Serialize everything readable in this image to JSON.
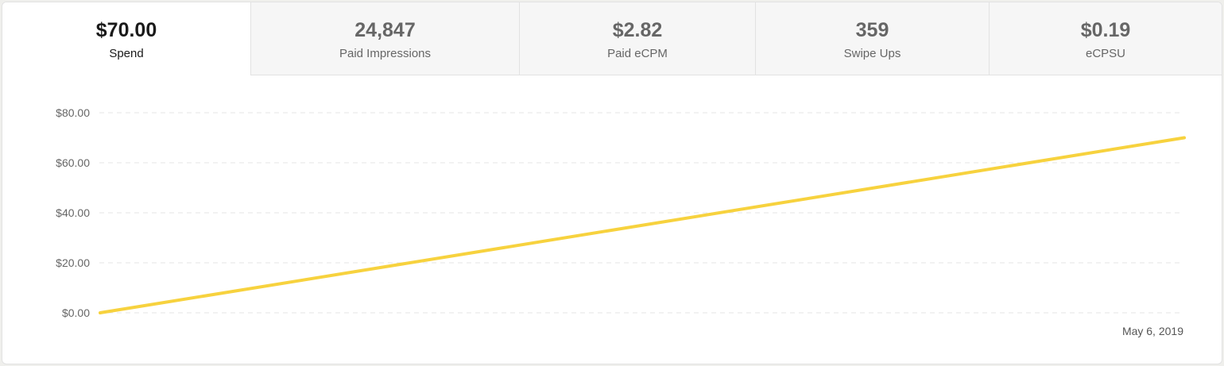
{
  "tabs": [
    {
      "value": "$70.00",
      "label": "Spend",
      "active": true
    },
    {
      "value": "24,847",
      "label": "Paid Impressions",
      "active": false
    },
    {
      "value": "$2.82",
      "label": "Paid eCPM",
      "active": false
    },
    {
      "value": "359",
      "label": "Swipe Ups",
      "active": false
    },
    {
      "value": "$0.19",
      "label": "eCPSU",
      "active": false
    }
  ],
  "chart_data": {
    "type": "line",
    "title": "",
    "xlabel": "",
    "ylabel": "",
    "x_tick_labels": [
      "May 6, 2019"
    ],
    "y_tick_labels": [
      "$0.00",
      "$20.00",
      "$40.00",
      "$60.00",
      "$80.00"
    ],
    "ylim": [
      0,
      80
    ],
    "grid": true,
    "series": [
      {
        "values": [
          0,
          70
        ],
        "color": "#f7d23e"
      }
    ]
  }
}
